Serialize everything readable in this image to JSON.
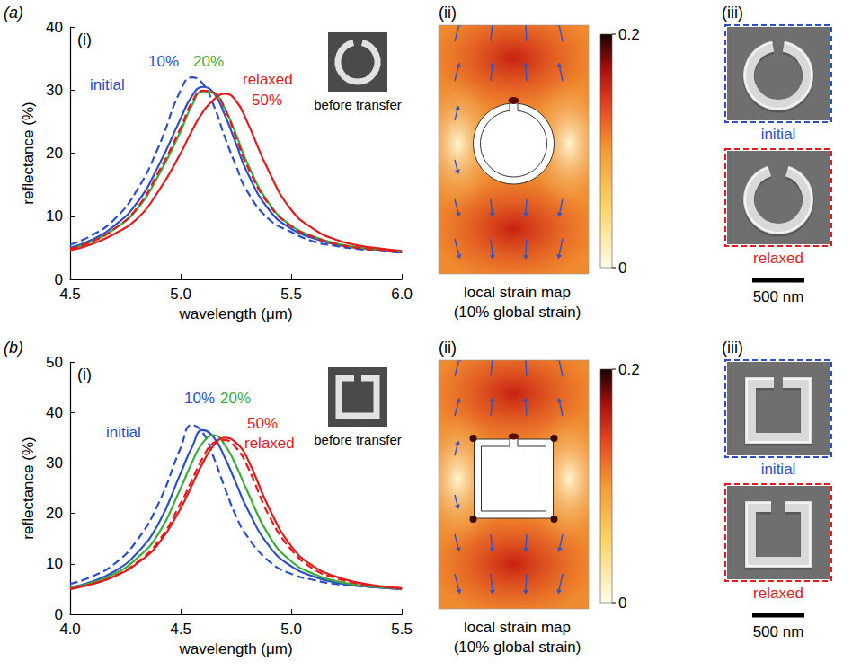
{
  "chart_data": [
    {
      "type": "line",
      "panel": "(a)",
      "subpanel": "(i)",
      "x_label": "wavelength (μm)",
      "y_label": "reflectance (%)",
      "inset_caption": "before transfer",
      "x": [
        4.5,
        4.6,
        4.7,
        4.8,
        4.9,
        5.0,
        5.05,
        5.1,
        5.15,
        5.2,
        5.25,
        5.3,
        5.4,
        5.5,
        5.6,
        5.7,
        5.8,
        5.9,
        6.0
      ],
      "xlim": [
        4.5,
        6.0
      ],
      "xticks": [
        4.5,
        {
          "value": 5,
          "label": "5.0"
        },
        5.5,
        {
          "value": 6,
          "label": "6.0"
        }
      ],
      "ylim": [
        0,
        40
      ],
      "yticks": [
        0,
        10,
        20,
        30,
        40
      ],
      "grid": false,
      "series": [
        {
          "name": "initial",
          "color": "#2b4fc9",
          "line_style": "dashed",
          "values": [
            5.5,
            7,
            9.5,
            14,
            21,
            30,
            32,
            31,
            27.5,
            22.5,
            18,
            14,
            9.5,
            7.5,
            6,
            5.3,
            4.8,
            4.5,
            4.2
          ]
        },
        {
          "name": "10%",
          "color": "#2b4fc9",
          "line_style": "solid",
          "values": [
            5,
            6.3,
            8.5,
            12,
            18,
            25.5,
            29,
            30.5,
            29.5,
            26,
            21.5,
            17,
            11,
            8,
            6.5,
            5.5,
            5,
            4.6,
            4.3
          ]
        },
        {
          "name": "20%",
          "color": "#3aad3a",
          "line_style": "solid",
          "values": [
            4.8,
            6,
            8,
            11,
            16.5,
            23.5,
            27.5,
            29.8,
            29.5,
            27,
            23,
            18.5,
            12,
            8.5,
            6.8,
            5.7,
            5.1,
            4.7,
            4.4
          ]
        },
        {
          "name": "50%",
          "color": "#e41a1c",
          "line_style": "solid",
          "values": [
            4.6,
            5.6,
            7.2,
            9.5,
            14,
            20,
            23.5,
            26.5,
            28.5,
            29.4,
            28.3,
            25,
            17,
            11,
            8,
            6.3,
            5.4,
            4.9,
            4.5
          ]
        },
        {
          "name": "relaxed",
          "color": "#e41a1c",
          "line_style": "dashed",
          "values": [
            4.8,
            6,
            8,
            11.2,
            17,
            24,
            28,
            29.9,
            29.6,
            27,
            22.5,
            18,
            11.8,
            8.4,
            6.7,
            5.6,
            5,
            4.6,
            4.3
          ]
        }
      ]
    },
    {
      "type": "line",
      "panel": "(b)",
      "subpanel": "(i)",
      "x_label": "wavelength (μm)",
      "y_label": "reflectance (%)",
      "inset_caption": "before transfer",
      "x": [
        4.0,
        4.1,
        4.2,
        4.3,
        4.4,
        4.5,
        4.55,
        4.6,
        4.65,
        4.7,
        4.75,
        4.8,
        4.9,
        5.0,
        5.1,
        5.2,
        5.3,
        5.4,
        5.5
      ],
      "xlim": [
        4.0,
        5.5
      ],
      "xticks": [
        {
          "value": 4,
          "label": "4.0"
        },
        4.5,
        {
          "value": 5,
          "label": "5.0"
        },
        5.5
      ],
      "ylim": [
        0,
        50
      ],
      "yticks": [
        0,
        10,
        20,
        30,
        40,
        50
      ],
      "grid": false,
      "series": [
        {
          "name": "initial",
          "color": "#2b4fc9",
          "line_style": "dashed",
          "values": [
            6,
            7.5,
            10,
            14.5,
            22,
            33,
            37.5,
            36,
            31,
            25,
            19.5,
            15.5,
            10.5,
            8,
            6.8,
            6,
            5.6,
            5.3,
            5
          ]
        },
        {
          "name": "10%",
          "color": "#2b4fc9",
          "line_style": "solid",
          "values": [
            5.3,
            6.5,
            8.5,
            12,
            18,
            28,
            33,
            36.5,
            35,
            31,
            26,
            21,
            13.5,
            9.5,
            7.5,
            6.3,
            5.7,
            5.3,
            5
          ]
        },
        {
          "name": "20%",
          "color": "#3aad3a",
          "line_style": "solid",
          "values": [
            5.2,
            6.3,
            8,
            11,
            16,
            25,
            30,
            34,
            35.5,
            33.5,
            29.5,
            24.5,
            15.5,
            10.5,
            8,
            6.6,
            5.8,
            5.4,
            5.1
          ]
        },
        {
          "name": "50%",
          "color": "#e41a1c",
          "line_style": "solid",
          "values": [
            5,
            6,
            7.5,
            10,
            14,
            21,
            25.5,
            30,
            33.5,
            35,
            34,
            31,
            21,
            13.5,
            9.5,
            7.5,
            6.3,
            5.6,
            5.2
          ]
        },
        {
          "name": "relaxed",
          "color": "#e41a1c",
          "line_style": "dashed",
          "values": [
            5,
            6,
            7.6,
            10.2,
            14.5,
            22,
            26.5,
            31,
            34,
            34.5,
            33,
            29.5,
            19.5,
            12.8,
            9,
            7.2,
            6.1,
            5.5,
            5.1
          ]
        }
      ]
    }
  ],
  "strain_maps": [
    {
      "panel": "(ii)",
      "caption": [
        "local strain map",
        "(10% global strain)"
      ],
      "colorbar_range": [
        0,
        0.2
      ],
      "colorbar_ticks": [
        0,
        0.2
      ]
    },
    {
      "panel": "(ii)",
      "caption": [
        "local strain map",
        "(10% global strain)"
      ],
      "colorbar_range": [
        0,
        0.2
      ],
      "colorbar_ticks": [
        0,
        0.2
      ]
    }
  ],
  "sem_images": [
    {
      "panel": "(iii)",
      "images": [
        {
          "label": "initial",
          "color": "#2b4fc9"
        },
        {
          "label": "relaxed",
          "color": "#e41a1c"
        }
      ],
      "scale_bar": "500 nm"
    },
    {
      "panel": "(iii)",
      "images": [
        {
          "label": "initial",
          "color": "#2b4fc9"
        },
        {
          "label": "relaxed",
          "color": "#e41a1c"
        }
      ],
      "scale_bar": "500 nm"
    }
  ]
}
